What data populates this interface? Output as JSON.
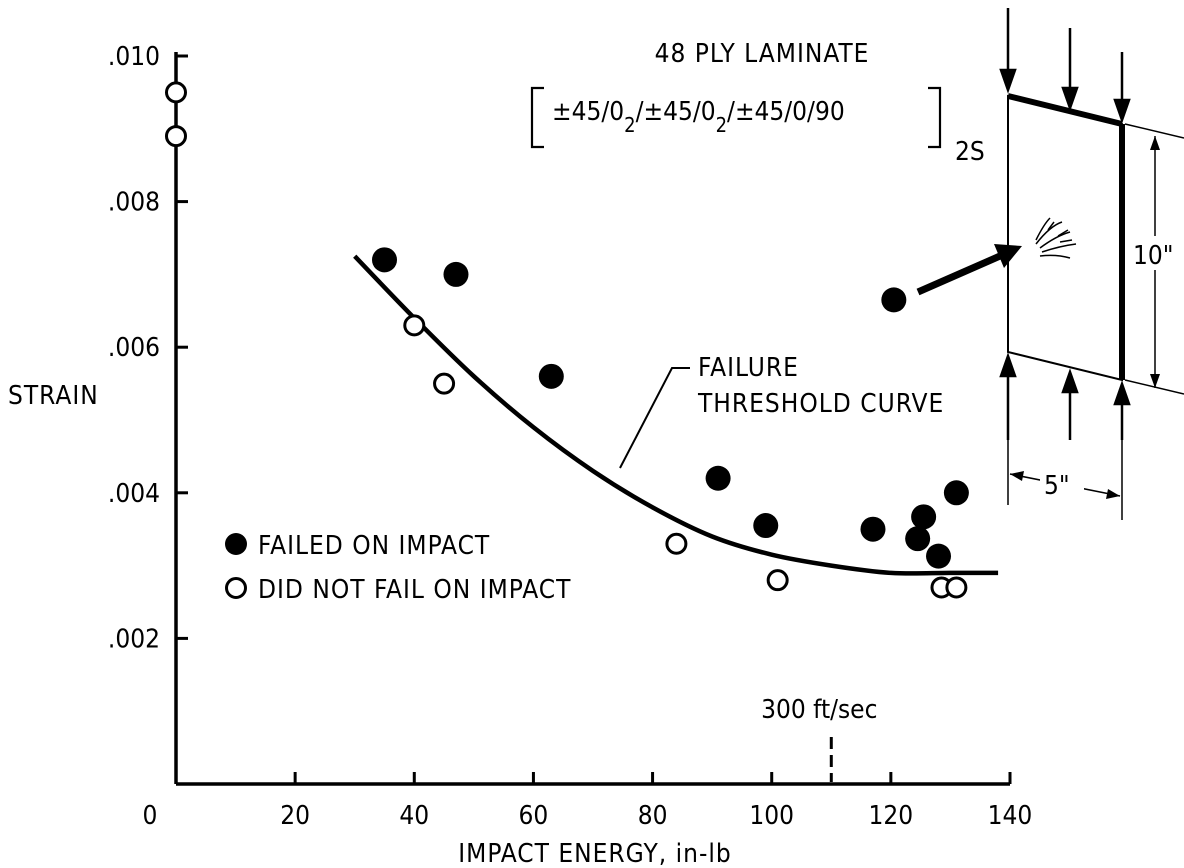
{
  "chart_data": {
    "type": "scatter",
    "title": "48 PLY LAMINATE",
    "layup": {
      "main": "±45/0",
      "sub": "2",
      "slash": "/",
      "end": "±45/0/90",
      "suffix": "2S"
    },
    "xlabel": "IMPACT ENERGY, in-lb",
    "ylabel": "STRAIN",
    "xlim": [
      0,
      140
    ],
    "ylim": [
      0,
      0.01
    ],
    "x_ticks": [
      {
        "value": 0,
        "label": "0"
      },
      {
        "value": 20,
        "label": "20"
      },
      {
        "value": 40,
        "label": "40"
      },
      {
        "value": 60,
        "label": "60"
      },
      {
        "value": 80,
        "label": "80"
      },
      {
        "value": 100,
        "label": "100"
      },
      {
        "value": 120,
        "label": "120"
      },
      {
        "value": 140,
        "label": "140"
      }
    ],
    "y_ticks": [
      {
        "value": 0.002,
        "label": ".002"
      },
      {
        "value": 0.004,
        "label": ".004"
      },
      {
        "value": 0.006,
        "label": ".006"
      },
      {
        "value": 0.008,
        "label": ".008"
      },
      {
        "value": 0.01,
        "label": ".010"
      }
    ],
    "series": [
      {
        "name": "FAILED ON IMPACT",
        "marker": "filled",
        "points": [
          {
            "x": 35,
            "y": 0.0072
          },
          {
            "x": 47,
            "y": 0.007
          },
          {
            "x": 63,
            "y": 0.0056
          },
          {
            "x": 91,
            "y": 0.0042
          },
          {
            "x": 99,
            "y": 0.00355
          },
          {
            "x": 117,
            "y": 0.0035
          },
          {
            "x": 120.5,
            "y": 0.00665
          },
          {
            "x": 124.5,
            "y": 0.00337
          },
          {
            "x": 125.5,
            "y": 0.00367
          },
          {
            "x": 128,
            "y": 0.00313
          },
          {
            "x": 131,
            "y": 0.004
          }
        ]
      },
      {
        "name": "DID NOT FAIL ON IMPACT",
        "marker": "open",
        "points": [
          {
            "x": 0,
            "y": 0.0095
          },
          {
            "x": 0,
            "y": 0.0089
          },
          {
            "x": 40,
            "y": 0.0063
          },
          {
            "x": 45,
            "y": 0.0055
          },
          {
            "x": 84,
            "y": 0.0033
          },
          {
            "x": 101,
            "y": 0.0028
          },
          {
            "x": 128.5,
            "y": 0.0027
          },
          {
            "x": 131,
            "y": 0.0027
          }
        ]
      }
    ],
    "curve": {
      "name": "FAILURE THRESHOLD CURVE",
      "label_lines": [
        "FAILURE",
        "THRESHOLD CURVE"
      ],
      "points": [
        [
          30,
          0.00725
        ],
        [
          40,
          0.0064
        ],
        [
          50,
          0.0056
        ],
        [
          60,
          0.0049
        ],
        [
          70,
          0.0043
        ],
        [
          80,
          0.0038
        ],
        [
          90,
          0.0034
        ],
        [
          100,
          0.00315
        ],
        [
          110,
          0.003
        ],
        [
          120,
          0.0029
        ],
        [
          130,
          0.0029
        ],
        [
          138,
          0.0029
        ]
      ]
    },
    "annotation": {
      "label": "300 ft/sec",
      "x": 110
    },
    "specimen": {
      "height_label": "10\"",
      "width_label": "5\""
    },
    "legend_position": "lower-left"
  }
}
